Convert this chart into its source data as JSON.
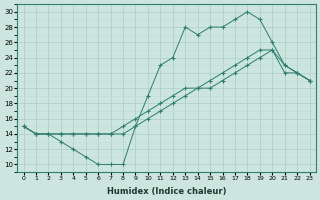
{
  "xlabel": "Humidex (Indice chaleur)",
  "xlim": [
    -0.5,
    23.5
  ],
  "ylim": [
    9,
    31
  ],
  "yticks": [
    10,
    12,
    14,
    16,
    18,
    20,
    22,
    24,
    26,
    28,
    30
  ],
  "xticks": [
    0,
    1,
    2,
    3,
    4,
    5,
    6,
    7,
    8,
    9,
    10,
    11,
    12,
    13,
    14,
    15,
    16,
    17,
    18,
    19,
    20,
    21,
    22,
    23
  ],
  "line_color": "#2e7d6e",
  "bg_color": "#cce5de",
  "grid_major_color": "#aacfc5",
  "grid_minor_color": "#c0ddd6",
  "line1_x": [
    0,
    1,
    2,
    3,
    4,
    5,
    6,
    7,
    8,
    9,
    10,
    11,
    12,
    13,
    14,
    15,
    16,
    17,
    18,
    19,
    20,
    21,
    22,
    23
  ],
  "line1_y": [
    15,
    14,
    14,
    13,
    12,
    11,
    10,
    10,
    10,
    15,
    19,
    23,
    24,
    28,
    27,
    28,
    28,
    29,
    30,
    29,
    26,
    23,
    22,
    21
  ],
  "line2_x": [
    0,
    1,
    2,
    3,
    4,
    5,
    6,
    7,
    8,
    9,
    10,
    11,
    12,
    13,
    14,
    15,
    16,
    17,
    18,
    19,
    20,
    21,
    22,
    23
  ],
  "line2_y": [
    15,
    14,
    14,
    14,
    14,
    14,
    14,
    14,
    15,
    16,
    17,
    18,
    19,
    20,
    20,
    21,
    22,
    23,
    24,
    25,
    25,
    23,
    22,
    21
  ],
  "line3_x": [
    0,
    1,
    2,
    3,
    4,
    5,
    6,
    7,
    8,
    9,
    10,
    11,
    12,
    13,
    14,
    15,
    16,
    17,
    18,
    19,
    20,
    21,
    22,
    23
  ],
  "line3_y": [
    15,
    14,
    14,
    14,
    14,
    14,
    14,
    14,
    14,
    15,
    16,
    17,
    18,
    19,
    20,
    20,
    21,
    22,
    23,
    24,
    25,
    22,
    22,
    21
  ]
}
